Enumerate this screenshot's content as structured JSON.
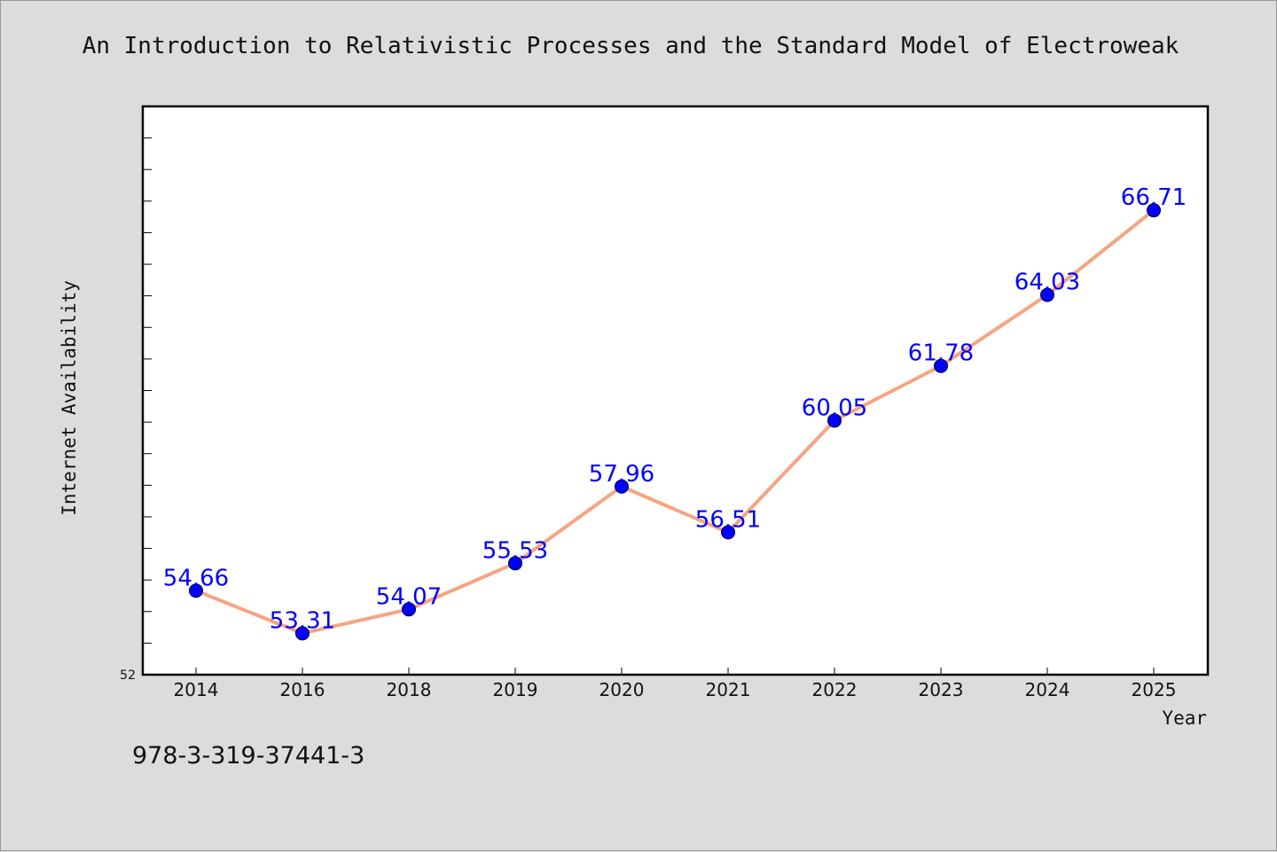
{
  "title": "An Introduction to Relativistic Processes and the Standard Model of Electroweak",
  "footer": "978-3-319-37441-3",
  "chart_data": {
    "type": "line",
    "categories": [
      "2014",
      "2016",
      "2018",
      "2019",
      "2020",
      "2021",
      "2022",
      "2023",
      "2024",
      "2025"
    ],
    "series": [
      {
        "values": [
          54.66,
          53.31,
          54.07,
          55.53,
          57.96,
          56.51,
          60.05,
          61.78,
          64.03,
          66.71
        ],
        "labels": [
          "54.66",
          "53.31",
          "54.07",
          "55.53",
          "57.96",
          "56.51",
          "60.05",
          "61.78",
          "64.03",
          "66.71"
        ],
        "line_color": "#f4a582",
        "marker_color": "#0000ff"
      }
    ],
    "xlabel": "Year",
    "ylabel": "Internet Availability",
    "ylim": [
      52,
      70
    ],
    "ytick_labels": [
      "52"
    ],
    "grid": false,
    "legend": "none"
  }
}
